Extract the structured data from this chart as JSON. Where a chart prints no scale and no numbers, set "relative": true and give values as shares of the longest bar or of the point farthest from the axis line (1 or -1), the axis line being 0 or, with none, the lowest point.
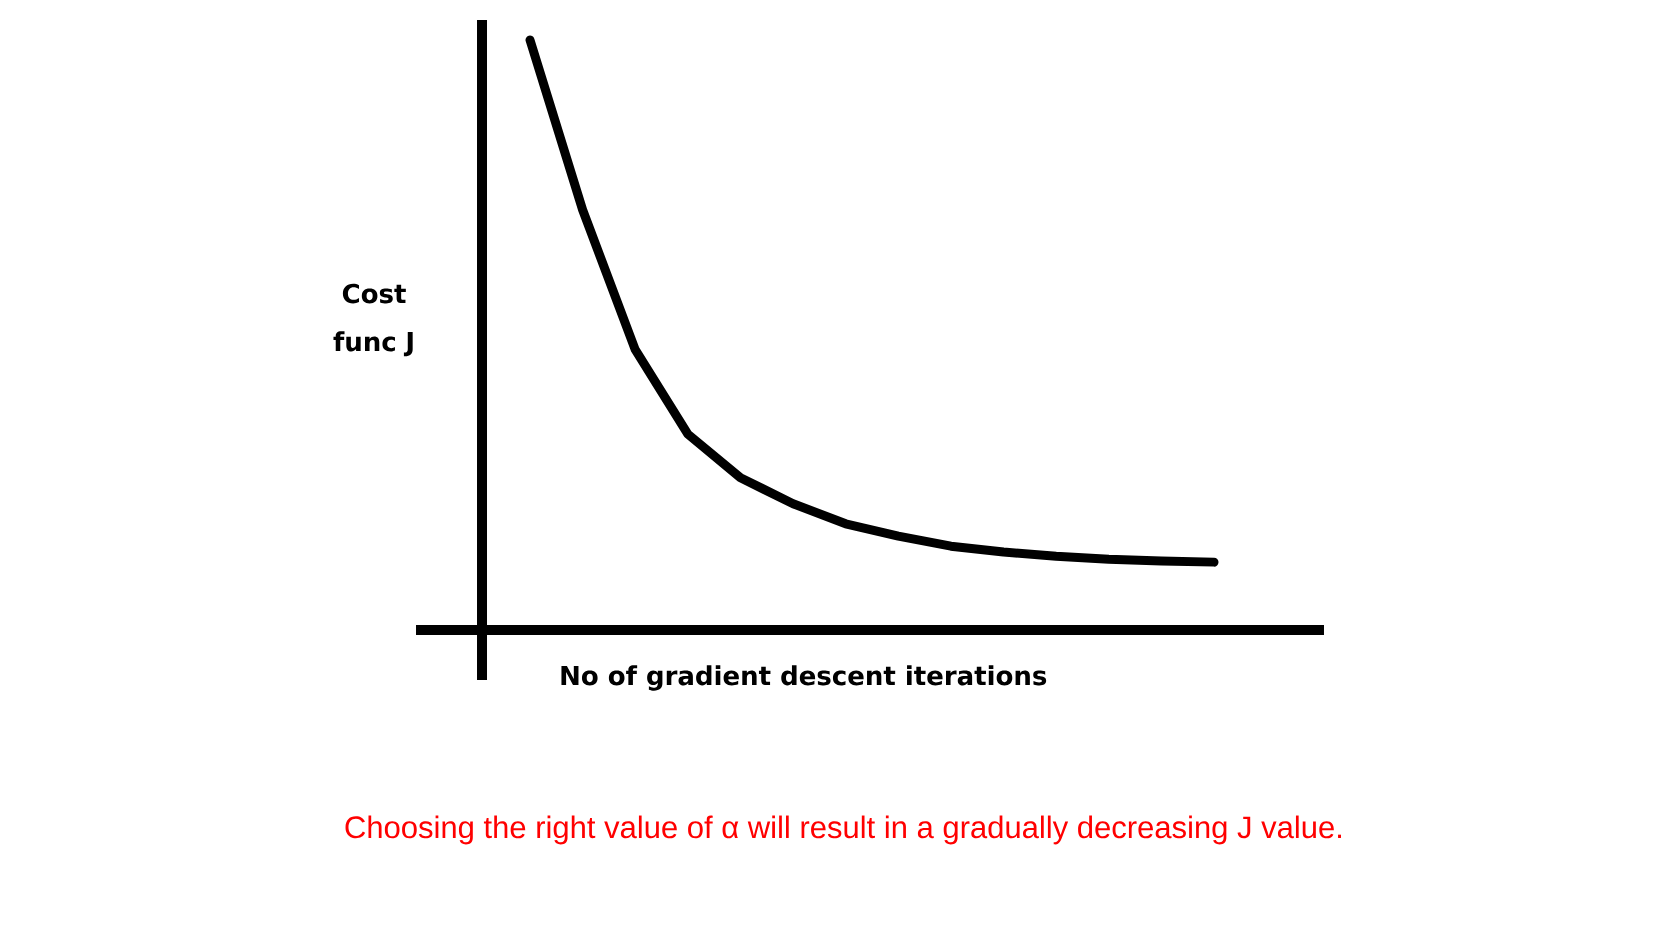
{
  "chart_data": {
    "type": "line",
    "relative": true,
    "xlabel": "No of gradient descent iterations",
    "ylabel": "Cost func J",
    "categories": [
      null,
      null,
      null,
      null,
      null,
      null,
      null,
      null,
      null,
      null,
      null,
      null,
      null,
      null
    ],
    "values": [
      1.0,
      0.712,
      0.475,
      0.332,
      0.258,
      0.214,
      0.18,
      0.159,
      0.142,
      0.132,
      0.125,
      0.12,
      0.117,
      0.115
    ],
    "color": "#000000",
    "annotations": [
      "Choosing the right value of α will result in a gradually decreasing J value."
    ]
  }
}
